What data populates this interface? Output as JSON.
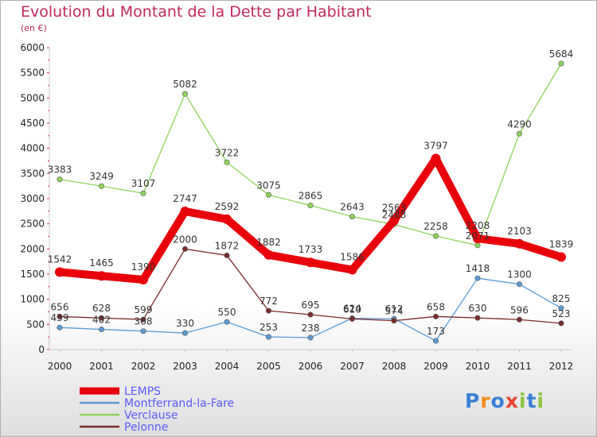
{
  "title": "Evolution du Montant de la Dette par Habitant",
  "subtitle": "(en €)",
  "logo": {
    "letters": [
      "P",
      "r",
      "o",
      "x",
      "i",
      "t",
      "i"
    ],
    "colors": [
      "#3a7fd5",
      "#f28c1e",
      "#3a7fd5",
      "#e8442e",
      "#8bc53f",
      "#3a7fd5",
      "#8bc53f"
    ]
  },
  "chart_data": {
    "type": "line",
    "x": [
      "2000",
      "2001",
      "2002",
      "2003",
      "2004",
      "2005",
      "2006",
      "2007",
      "2008",
      "2009",
      "2010",
      "2011",
      "2012"
    ],
    "ylim": [
      0,
      6000
    ],
    "yticks": [
      "0",
      "500",
      "1000",
      "1500",
      "2000",
      "2500",
      "3000",
      "3500",
      "4000",
      "4500",
      "5000",
      "5500",
      "6000"
    ],
    "grid": false,
    "legend_position": "bottom-left",
    "series": [
      {
        "name": "LEMPS",
        "color": "#e8000b",
        "values": [
          1542,
          1465,
          1390,
          2747,
          2592,
          1882,
          1733,
          1586,
          2563,
          3797,
          2208,
          2103,
          1839
        ],
        "labels": [
          "1542",
          "1465",
          "1390",
          "2747",
          "2592",
          "1882",
          "1733",
          "1586",
          "2563",
          "3797",
          "2208",
          "2103",
          "1839"
        ]
      },
      {
        "name": "Montferrand-la-Fare",
        "color": "#5b9bd5",
        "values": [
          439,
          402,
          368,
          330,
          550,
          253,
          238,
          624,
          612,
          173,
          1418,
          1300,
          825
        ],
        "labels": [
          "439",
          "402",
          "368",
          "330",
          "550",
          "253",
          "238",
          "624",
          "612",
          "173",
          "1418",
          "1300",
          "825"
        ]
      },
      {
        "name": "Verclause",
        "color": "#8fd45a",
        "values": [
          3383,
          3249,
          3107,
          5082,
          3722,
          3075,
          2865,
          2643,
          2488,
          2258,
          2071,
          4290,
          5684
        ],
        "labels": [
          "3383",
          "3249",
          "3107",
          "5082",
          "3722",
          "3075",
          "2865",
          "2643",
          "2488",
          "2258",
          "2071",
          "4290",
          "5684"
        ]
      },
      {
        "name": "Pelonne",
        "color": "#7b2b2b",
        "values": [
          656,
          628,
          599,
          2000,
          1872,
          772,
          695,
          610,
          574,
          658,
          630,
          596,
          523
        ],
        "labels": [
          "656",
          "628",
          "599",
          "2000",
          "1872",
          "772",
          "695",
          "610",
          "574",
          "658",
          "630",
          "596",
          "523"
        ]
      }
    ]
  }
}
